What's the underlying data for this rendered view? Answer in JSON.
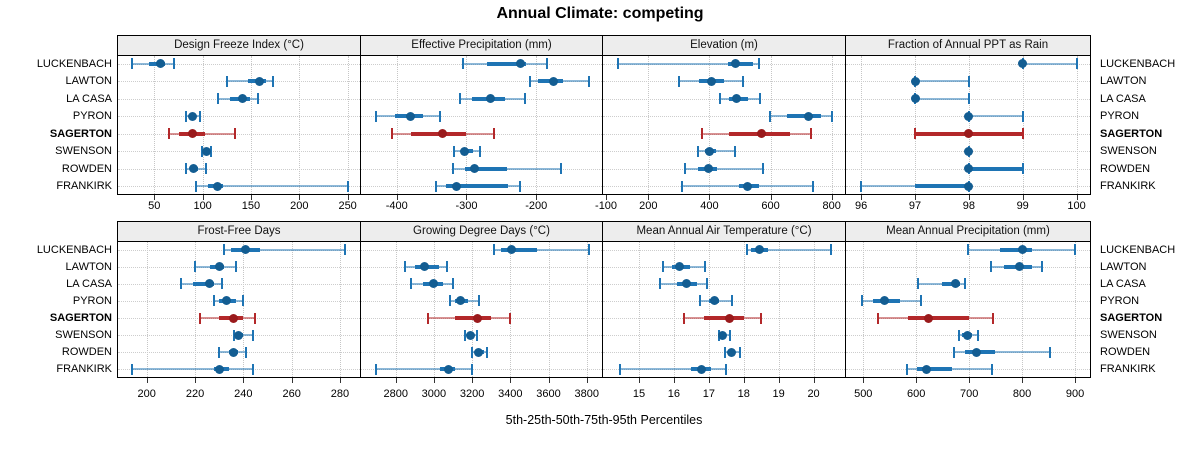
{
  "title": "Annual Climate: competing",
  "axis_title": "5th-25th-50th-75th-95th Percentiles",
  "sites": [
    "LUCKENBACH",
    "LAWTON",
    "LA CASA",
    "PYRON",
    "SAGERTON",
    "SWENSON",
    "ROWDEN",
    "FRANKIRK"
  ],
  "highlight_site": "SAGERTON",
  "colors": {
    "series": "#1e74b4",
    "series_dot": "#135d92",
    "highlight": "#b3282a",
    "highlight_dot": "#9a1a1c",
    "strip_bg": "#ededed",
    "grid": "#c8c8c8"
  },
  "chart_data": [
    {
      "type": "interval",
      "title": "Design Freeze Index (°C)",
      "row": "top",
      "col": 0,
      "xlim": [
        11.4,
        262.8
      ],
      "ticks": [
        50,
        100,
        150,
        200,
        250
      ],
      "tick_labels": [
        "50",
        "100",
        "150",
        "200",
        "250"
      ],
      "percentile_labels": [
        "p5",
        "p25",
        "p50",
        "p75",
        "p95"
      ],
      "values": [
        [
          27,
          45,
          56,
          61,
          70
        ],
        [
          125,
          147,
          159,
          166,
          173
        ],
        [
          116,
          128,
          141,
          149,
          157
        ],
        [
          83,
          87,
          90,
          93,
          97
        ],
        [
          65,
          76,
          89,
          102,
          133
        ],
        [
          99,
          101,
          104,
          107,
          109
        ],
        [
          83,
          87,
          91,
          95,
          103
        ],
        [
          93,
          106,
          115,
          121,
          250
        ]
      ]
    },
    {
      "type": "interval",
      "title": "Effective Precipitation (mm)",
      "row": "top",
      "col": 1,
      "xlim": [
        -452.6,
        -105.8
      ],
      "ticks": [
        -400,
        -300,
        -200,
        -100
      ],
      "tick_labels": [
        "-400",
        "-300",
        "-200",
        "-100"
      ],
      "values": [
        [
          -305,
          -271,
          -222,
          -215,
          -185
        ],
        [
          -209,
          -197,
          -176,
          -161,
          -125
        ],
        [
          -309,
          -292,
          -265,
          -245,
          -216
        ],
        [
          -430,
          -402,
          -380,
          -362,
          -338
        ],
        [
          -407,
          -380,
          -335,
          -300,
          -260
        ],
        [
          -318,
          -308,
          -303,
          -291,
          -281
        ],
        [
          -319,
          -302,
          -288,
          -242,
          -165
        ],
        [
          -344,
          -330,
          -314,
          -240,
          -224
        ]
      ]
    },
    {
      "type": "interval",
      "title": "Elevation (m)",
      "row": "top",
      "col": 2,
      "xlim": [
        48.5,
        843.5
      ],
      "ticks": [
        200,
        400,
        600,
        800
      ],
      "tick_labels": [
        "200",
        "400",
        "600",
        "800"
      ],
      "values": [
        [
          102,
          460,
          484,
          542,
          561
        ],
        [
          302,
          367,
          408,
          449,
          511
        ],
        [
          433,
          465,
          487,
          525,
          567
        ],
        [
          598,
          655,
          725,
          764,
          800
        ],
        [
          375,
          465,
          569,
          665,
          731
        ],
        [
          362,
          384,
          400,
          422,
          482
        ],
        [
          321,
          361,
          397,
          426,
          575
        ],
        [
          310,
          498,
          523,
          563,
          740
        ]
      ]
    },
    {
      "type": "interval",
      "title": "Fraction of Annual PPT as Rain",
      "row": "top",
      "col": 3,
      "xlim": [
        95.7,
        100.25
      ],
      "ticks": [
        96,
        97,
        98,
        99,
        100
      ],
      "tick_labels": [
        "96",
        "97",
        "98",
        "99",
        "100"
      ],
      "values": [
        [
          99,
          99,
          99,
          99,
          100
        ],
        [
          97,
          97,
          97,
          97,
          98
        ],
        [
          97,
          97,
          97,
          97,
          98
        ],
        [
          98,
          98,
          98,
          98,
          99
        ],
        [
          97,
          97,
          98,
          99,
          99
        ],
        [
          98,
          98,
          98,
          98,
          98
        ],
        [
          98,
          98,
          98,
          99,
          99
        ],
        [
          96,
          97,
          98,
          98,
          98
        ]
      ]
    },
    {
      "type": "interval",
      "title": "Frost-Free Days",
      "row": "bottom",
      "col": 0,
      "xlim": [
        187.7,
        288.3
      ],
      "ticks": [
        200,
        220,
        240,
        260,
        280
      ],
      "tick_labels": [
        "200",
        "220",
        "240",
        "260",
        "280"
      ],
      "values": [
        [
          232,
          235,
          241,
          247,
          282
        ],
        [
          220,
          226,
          230,
          232,
          237
        ],
        [
          214,
          219,
          226,
          228,
          231
        ],
        [
          228,
          230,
          233,
          237,
          240
        ],
        [
          222,
          230,
          236,
          240,
          245
        ],
        [
          236,
          237,
          238,
          240,
          244
        ],
        [
          230,
          234,
          236,
          238,
          241
        ],
        [
          194,
          228,
          230,
          234,
          244
        ]
      ]
    },
    {
      "type": "interval",
      "title": "Growing Degree Days (°C)",
      "row": "bottom",
      "col": 1,
      "xlim": [
        2613,
        3880
      ],
      "ticks": [
        2800,
        3000,
        3200,
        3400,
        3600,
        3800
      ],
      "tick_labels": [
        "2800",
        "3000",
        "3200",
        "3400",
        "3600",
        "3800"
      ],
      "values": [
        [
          3315,
          3350,
          3405,
          3540,
          3810
        ],
        [
          2850,
          2900,
          2950,
          3025,
          3070
        ],
        [
          2880,
          2945,
          3000,
          3045,
          3100
        ],
        [
          3085,
          3110,
          3140,
          3180,
          3235
        ],
        [
          2970,
          3110,
          3230,
          3300,
          3400
        ],
        [
          3165,
          3175,
          3190,
          3205,
          3225
        ],
        [
          3200,
          3215,
          3235,
          3260,
          3280
        ],
        [
          2695,
          3030,
          3075,
          3110,
          3200
        ]
      ]
    },
    {
      "type": "interval",
      "title": "Mean Annual Air Temperature (°C)",
      "row": "bottom",
      "col": 2,
      "xlim": [
        13.94,
        20.9
      ],
      "ticks": [
        15,
        16,
        17,
        18,
        19,
        20
      ],
      "tick_labels": [
        "15",
        "16",
        "17",
        "18",
        "19",
        "20"
      ],
      "values": [
        [
          18.1,
          18.2,
          18.45,
          18.7,
          20.5
        ],
        [
          15.7,
          15.95,
          16.15,
          16.45,
          16.9
        ],
        [
          15.6,
          16.1,
          16.35,
          16.65,
          16.95
        ],
        [
          16.75,
          17.0,
          17.15,
          17.3,
          17.65
        ],
        [
          16.3,
          16.85,
          17.6,
          18.0,
          18.5
        ],
        [
          17.3,
          17.35,
          17.4,
          17.5,
          17.6
        ],
        [
          17.45,
          17.55,
          17.65,
          17.75,
          17.9
        ],
        [
          14.45,
          16.5,
          16.8,
          17.05,
          17.5
        ]
      ]
    },
    {
      "type": "interval",
      "title": "Mean Annual Precipitation (mm)",
      "row": "bottom",
      "col": 3,
      "xlim": [
        465.5,
        928.3
      ],
      "ticks": [
        500,
        600,
        700,
        800,
        900
      ],
      "tick_labels": [
        "500",
        "600",
        "700",
        "800",
        "900"
      ],
      "values": [
        [
          698,
          758,
          800,
          818,
          900
        ],
        [
          742,
          766,
          795,
          818,
          838
        ],
        [
          603,
          648,
          674,
          683,
          692
        ],
        [
          497,
          519,
          541,
          569,
          609
        ],
        [
          527,
          585,
          623,
          699,
          745
        ],
        [
          680,
          686,
          696,
          705,
          717
        ],
        [
          672,
          692,
          714,
          749,
          853
        ],
        [
          582,
          601,
          620,
          667,
          744
        ]
      ]
    }
  ]
}
